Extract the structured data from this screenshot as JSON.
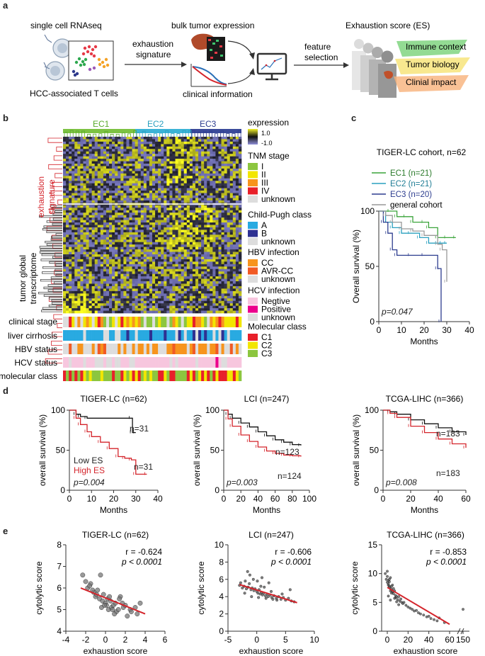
{
  "panel_labels": {
    "a": "a",
    "b": "b",
    "c": "c",
    "d": "d",
    "e": "e"
  },
  "panel_a": {
    "title_scrna": "single cell RNAseq",
    "title_bulk": "bulk tumor expression",
    "title_es": "Exhaustion score (ES)",
    "arrow1_line1": "exhaustion",
    "arrow1_line2": "signature",
    "arrow2_line1": "feature",
    "arrow2_line2": "selection",
    "caption_tcells": "HCC-associated T cells",
    "caption_clinical": "clinical information",
    "es_layers": [
      "Immune context",
      "Tumor biology",
      "Clinial impact"
    ],
    "colors": {
      "immune": "#6fcf6f",
      "tumor": "#f5e06a",
      "clinical": "#f7b27a"
    }
  },
  "panel_b": {
    "clusters": [
      "EC1",
      "EC2",
      "EC3"
    ],
    "cluster_colors": [
      "#7cc242",
      "#3bb3d6",
      "#3a4a9a"
    ],
    "row_label_signature_line1": "exhaustion",
    "row_label_signature_line2": "signature",
    "row_label_transcriptome_line1": "tumor global",
    "row_label_transcriptome_line2": "transcriptome",
    "annotation_rows": [
      "clinical stage",
      "liver cirrhosis",
      "HBV status",
      "HCV status",
      "molecular class"
    ],
    "legend": {
      "expression_title": "expression",
      "expression_max": "1.0",
      "expression_min": "-1.0",
      "tnm_title": "TNM stage",
      "tnm_items": [
        "I",
        "II",
        "III",
        "IV",
        "unknown"
      ],
      "tnm_colors": [
        "#8cc63f",
        "#f2e600",
        "#f7941d",
        "#e8202a",
        "#dddddd"
      ],
      "cp_title": "Child-Pugh class",
      "cp_items": [
        "A",
        "B",
        "unknown"
      ],
      "cp_colors": [
        "#29aae1",
        "#2e3192",
        "#dddddd"
      ],
      "hbv_title": "HBV infection",
      "hbv_items": [
        "CC",
        "AVR-CC",
        "unknown"
      ],
      "hbv_colors": [
        "#f7941d",
        "#f15a24",
        "#dddddd"
      ],
      "hcv_title": "HCV infection",
      "hcv_items": [
        "Negtive",
        "Positive",
        "unknown"
      ],
      "hcv_colors": [
        "#f7c6de",
        "#ec008c",
        "#dddddd"
      ],
      "mc_title": "Molecular class",
      "mc_items": [
        "C1",
        "C2",
        "C3"
      ],
      "mc_colors": [
        "#e8202a",
        "#f2e600",
        "#8cc63f"
      ]
    }
  },
  "panel_c": {
    "title": "TIGER-LC cohort, n=62",
    "legend": [
      "EC1 (n=21)",
      "EC2 (n=21)",
      "EC3 (n=20)",
      "general cohort"
    ],
    "pval": "p=0.047"
  },
  "panel_d_common": {
    "ylabel": "overall survival (%)",
    "xlabel": "Months"
  },
  "panel_e_common": {
    "ylabel": "cytolytic score",
    "xlabel": "exhaustion score"
  },
  "chart_data": [
    {
      "id": "c-km",
      "type": "line",
      "title": "TIGER-LC cohort, n=62",
      "xlabel": "Months",
      "ylabel": "Overall survival (%)",
      "xlim": [
        0,
        40
      ],
      "ylim": [
        0,
        100
      ],
      "xticks": [
        0,
        10,
        20,
        30,
        40
      ],
      "yticks": [
        0,
        50,
        100
      ],
      "annotations": [
        "p=0.047"
      ],
      "series": [
        {
          "name": "EC1 (n=21)",
          "color": "#3aa43a",
          "x": [
            0,
            5,
            8,
            12,
            15,
            20,
            22,
            26,
            30,
            34
          ],
          "y": [
            100,
            100,
            95,
            95,
            90,
            90,
            85,
            76,
            76,
            76
          ]
        },
        {
          "name": "EC2 (n=21)",
          "color": "#2aa0bf",
          "x": [
            0,
            3,
            6,
            10,
            14,
            18,
            22,
            26,
            28,
            30
          ],
          "y": [
            100,
            90,
            85,
            80,
            80,
            76,
            71,
            71,
            71,
            71
          ]
        },
        {
          "name": "EC3 (n=20)",
          "color": "#2d3d8f",
          "x": [
            0,
            2,
            4,
            6,
            8,
            14,
            20,
            26,
            27,
            27.5
          ],
          "y": [
            100,
            90,
            80,
            65,
            60,
            60,
            60,
            48,
            48,
            0
          ]
        },
        {
          "name": "general cohort",
          "color": "#999999",
          "x": [
            0,
            3,
            6,
            10,
            15,
            20,
            26,
            28,
            30
          ],
          "y": [
            100,
            96,
            90,
            84,
            82,
            78,
            70,
            65,
            36
          ]
        }
      ]
    },
    {
      "id": "d1-km",
      "type": "line",
      "title": "TIGER-LC (n=62)",
      "xlabel": "Months",
      "ylabel": "overall survival (%)",
      "xlim": [
        0,
        40
      ],
      "ylim": [
        0,
        100
      ],
      "xticks": [
        0,
        10,
        20,
        30,
        40
      ],
      "yticks": [
        0,
        50,
        100
      ],
      "annotations": [
        "n=31",
        "n=31",
        "Low ES",
        "High ES",
        "p=0.004"
      ],
      "series": [
        {
          "name": "Low ES",
          "color": "#111111",
          "x": [
            0,
            3,
            5,
            8,
            28,
            28.5,
            30
          ],
          "y": [
            100,
            95,
            92,
            90,
            90,
            72,
            72
          ]
        },
        {
          "name": "High ES",
          "color": "#d4242b",
          "x": [
            0,
            3,
            5,
            8,
            10,
            14,
            18,
            22,
            25,
            28,
            30,
            35
          ],
          "y": [
            100,
            90,
            82,
            73,
            67,
            60,
            52,
            42,
            40,
            38,
            20,
            20
          ]
        }
      ]
    },
    {
      "id": "d2-km",
      "type": "line",
      "title": "LCI (n=247)",
      "xlabel": "Months",
      "ylabel": "overall survival (%)",
      "xlim": [
        0,
        100
      ],
      "ylim": [
        0,
        100
      ],
      "xticks": [
        0,
        20,
        40,
        60,
        80,
        100
      ],
      "yticks": [
        0,
        50,
        100
      ],
      "annotations": [
        "n=123",
        "n=124",
        "p=0.003"
      ],
      "series": [
        {
          "name": "Low ES",
          "color": "#111111",
          "x": [
            0,
            5,
            10,
            20,
            30,
            40,
            50,
            60,
            70,
            80,
            90
          ],
          "y": [
            100,
            95,
            90,
            84,
            79,
            73,
            68,
            63,
            60,
            57,
            56
          ]
        },
        {
          "name": "High ES",
          "color": "#d4242b",
          "x": [
            0,
            5,
            10,
            20,
            30,
            40,
            50,
            60,
            70,
            80,
            90
          ],
          "y": [
            100,
            89,
            80,
            69,
            61,
            54,
            49,
            46,
            44,
            43,
            42
          ]
        }
      ]
    },
    {
      "id": "d3-km",
      "type": "line",
      "title": "TCGA-LIHC (n=366)",
      "xlabel": "Months",
      "ylabel": "overall survival (%)",
      "xlim": [
        0,
        60
      ],
      "ylim": [
        0,
        100
      ],
      "xticks": [
        0,
        20,
        40,
        60
      ],
      "yticks": [
        0,
        50,
        100
      ],
      "annotations": [
        "n=183",
        "n=183",
        "p=0.008"
      ],
      "series": [
        {
          "name": "Low ES",
          "color": "#111111",
          "x": [
            0,
            5,
            10,
            20,
            30,
            40,
            50,
            60
          ],
          "y": [
            100,
            98,
            95,
            88,
            83,
            78,
            73,
            69
          ]
        },
        {
          "name": "High ES",
          "color": "#d4242b",
          "x": [
            0,
            5,
            10,
            20,
            30,
            40,
            50,
            60
          ],
          "y": [
            100,
            96,
            91,
            80,
            72,
            64,
            58,
            53
          ]
        }
      ]
    },
    {
      "id": "e1-scatter",
      "type": "scatter",
      "title": "TIGER-LC (n=62)",
      "xlabel": "exhaustion score",
      "ylabel": "cytolytic score",
      "xlim": [
        -4,
        6
      ],
      "ylim": [
        4,
        8
      ],
      "xticks": [
        -4,
        -2,
        0,
        2,
        4,
        6
      ],
      "yticks": [
        4,
        5,
        6,
        7,
        8
      ],
      "annotations": [
        "r = -0.624",
        "p < 0.0001"
      ],
      "fit": {
        "x": [
          -2.5,
          4
        ],
        "y": [
          6.0,
          4.8
        ]
      },
      "points": {
        "x": [
          -2.3,
          -2,
          -1.8,
          -1.5,
          -1.2,
          -1,
          -0.8,
          -0.6,
          -0.5,
          -0.3,
          -0.2,
          0,
          0.1,
          0.2,
          0.3,
          0.5,
          0.6,
          0.8,
          1,
          1.1,
          1.3,
          1.5,
          1.8,
          2,
          2.2,
          2.5,
          3,
          3.5,
          -1.6,
          -0.9,
          0.4,
          1.4,
          -0.4,
          0.9,
          2.6,
          -1.3,
          0.7,
          1.7,
          -0.1,
          3.2
        ],
        "y": [
          6.6,
          6.3,
          6.0,
          6.2,
          5.8,
          5.6,
          5.9,
          5.5,
          6.6,
          5.4,
          5.7,
          5.3,
          5.2,
          5.5,
          5.0,
          5.4,
          5.1,
          5.2,
          5.3,
          4.9,
          5.0,
          5.6,
          5.1,
          5.2,
          4.7,
          5.0,
          5.1,
          5.3,
          6.1,
          5.7,
          5.6,
          5.5,
          5.1,
          4.8,
          4.9,
          5.9,
          5.0,
          5.3,
          5.2,
          4.8
        ]
      }
    },
    {
      "id": "e2-scatter",
      "type": "scatter",
      "title": "LCI (n=247)",
      "xlabel": "exhaustion score",
      "ylabel": "cytolytic score",
      "xlim": [
        -5,
        10
      ],
      "ylim": [
        0,
        10
      ],
      "xticks": [
        -5,
        0,
        5,
        10
      ],
      "yticks": [
        0,
        2,
        4,
        6,
        8,
        10
      ],
      "annotations": [
        "r = -0.606",
        "p < 0.0001"
      ],
      "fit": {
        "x": [
          -3,
          7
        ],
        "y": [
          5.4,
          3.3
        ]
      },
      "points": {
        "x": [
          -3,
          -2.8,
          -2.5,
          -2.2,
          -2,
          -1.8,
          -1.5,
          -1.3,
          -1,
          -0.8,
          -0.5,
          -0.3,
          0,
          0.2,
          0.4,
          0.6,
          0.8,
          1,
          1.2,
          1.5,
          1.8,
          2,
          2.3,
          2.6,
          3,
          3.4,
          3.8,
          4.2,
          4.6,
          5,
          5.5,
          6,
          6.5,
          -1.2,
          -0.6,
          0.1,
          0.7,
          1.3,
          2.5,
          -2.1,
          -0.9,
          0.3,
          1.6,
          2.8,
          3.5,
          -1.6,
          0.9,
          2.1,
          4.4,
          5.8
        ],
        "y": [
          5.3,
          5.6,
          5.0,
          5.2,
          5.8,
          4.9,
          5.1,
          5.5,
          4.8,
          5.0,
          4.7,
          4.9,
          4.6,
          4.4,
          4.8,
          4.3,
          4.5,
          4.2,
          4.4,
          4.1,
          4.3,
          4.0,
          4.2,
          3.9,
          4.1,
          3.8,
          4.0,
          3.7,
          3.9,
          3.6,
          3.8,
          3.5,
          3.4,
          6.5,
          6.0,
          5.8,
          5.2,
          5.1,
          4.6,
          4.4,
          4.0,
          3.9,
          3.8,
          3.7,
          3.6,
          6.9,
          6.2,
          5.6,
          4.3,
          4.8
        ]
      }
    },
    {
      "id": "e3-scatter",
      "type": "scatter",
      "title": "TCGA-LIHC (n=366)",
      "xlabel": "exhaustion score",
      "ylabel": "cytolytic score",
      "xlim": [
        -10,
        150
      ],
      "ylim": [
        0,
        15
      ],
      "xticks": [
        0,
        20,
        40,
        60,
        150
      ],
      "yticks": [
        0,
        5,
        10,
        15
      ],
      "axis_break": [
        65,
        140
      ],
      "annotations": [
        "r = -0.853",
        "p < 0.0001"
      ],
      "fit": {
        "x": [
          0,
          60
        ],
        "y": [
          7.6,
          1.2
        ]
      },
      "points": {
        "x": [
          -2,
          -1,
          0,
          0,
          1,
          1,
          2,
          2,
          3,
          3,
          4,
          5,
          5,
          6,
          7,
          8,
          8,
          9,
          10,
          11,
          12,
          13,
          14,
          15,
          16,
          18,
          20,
          22,
          24,
          26,
          28,
          30,
          32,
          35,
          38,
          40,
          42,
          45,
          48,
          50,
          55,
          1,
          2,
          4,
          6,
          3,
          5,
          7,
          9,
          11,
          0,
          2,
          4,
          1,
          3,
          140
        ],
        "y": [
          10,
          9,
          9.5,
          8.5,
          8.8,
          8,
          7.8,
          9,
          7.5,
          7,
          7.2,
          6.8,
          8,
          6.5,
          7,
          6.2,
          5.8,
          6,
          5.5,
          6,
          5.2,
          5.6,
          5,
          4.8,
          5,
          4.5,
          4.2,
          4,
          3.8,
          3.5,
          3.6,
          3.2,
          3,
          2.8,
          2.5,
          2.6,
          2.2,
          2,
          1.8,
          2.3,
          1.5,
          8.2,
          7.6,
          6.6,
          7.4,
          9.3,
          6.9,
          5.7,
          5.1,
          4.6,
          10.4,
          8.6,
          7.8,
          6.1,
          5.4,
          3.8
        ]
      }
    }
  ]
}
